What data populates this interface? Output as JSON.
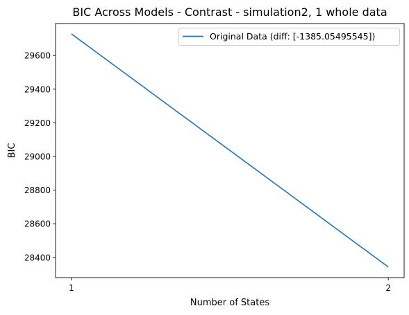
{
  "chart_data": {
    "type": "line",
    "title": "BIC Across Models - Contrast - simulation2, 1 whole data",
    "xlabel": "Number of States",
    "ylabel": "BIC",
    "x": [
      1,
      2
    ],
    "xticks": [
      1,
      2
    ],
    "xtick_labels": [
      "1",
      "2"
    ],
    "yticks": [
      28400,
      28600,
      28800,
      29000,
      29200,
      29400,
      29600
    ],
    "ytick_labels": [
      "28400",
      "28600",
      "28800",
      "29000",
      "29200",
      "29400",
      "29600"
    ],
    "xlim": [
      0.95,
      2.05
    ],
    "ylim": [
      28280,
      29790
    ],
    "grid": false,
    "legend_position": "top-right",
    "series": [
      {
        "name": "Original Data (diff: [-1385.05495545])",
        "color": "#1f77b4",
        "values": [
          29728.5,
          28343.4
        ]
      }
    ]
  }
}
